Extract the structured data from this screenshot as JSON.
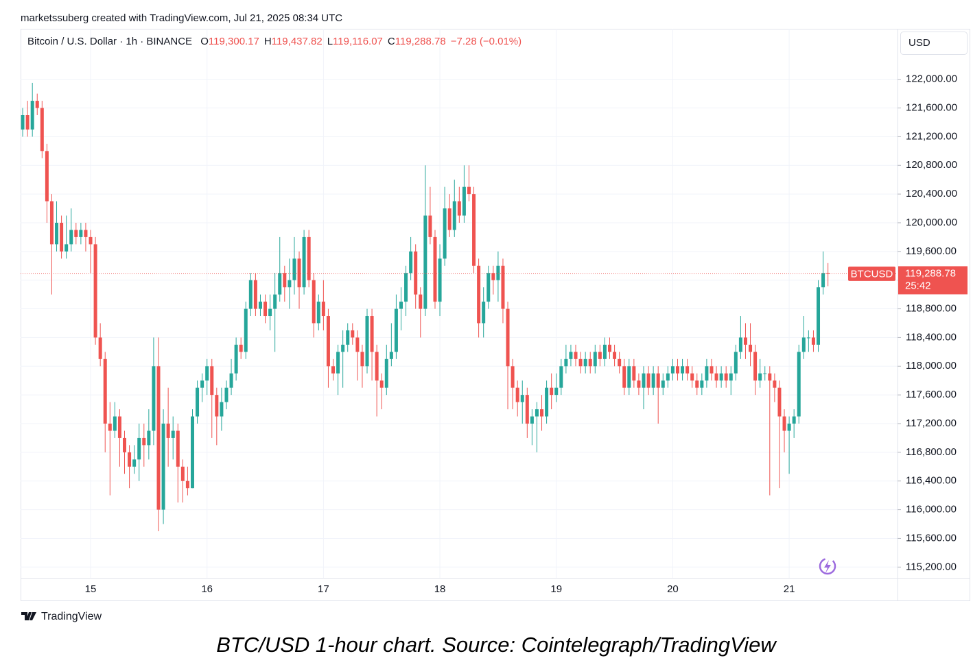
{
  "attribution": "marketssuberg created with TradingView.com, Jul 21, 2025 08:34 UTC",
  "caption": "BTC/USD 1-hour chart. Source: Cointelegraph/TradingView",
  "brand": "TradingView",
  "chart_data": {
    "type": "candlestick",
    "symbol": "Bitcoin / U.S. Dollar · 1h · BINANCE",
    "ohlc_legend": [
      {
        "key": "O",
        "text": "119,300.17"
      },
      {
        "key": "H",
        "text": "119,437.82"
      },
      {
        "key": "L",
        "text": "119,116.07"
      },
      {
        "key": "C",
        "text": "119,288.78"
      }
    ],
    "change": "−7.28 (−0.01%)",
    "currency": "USD",
    "price_tag": {
      "symbol": "BTCUSD",
      "price": "119,288.78",
      "countdown": "25:42"
    },
    "up_color": "#26a69a",
    "down_color": "#ef5350",
    "grid": true,
    "categories": [
      null,
      null,
      null,
      null,
      null,
      null,
      null,
      null,
      null,
      null,
      null,
      null,
      null,
      null,
      "15",
      null,
      null,
      null,
      null,
      null,
      null,
      null,
      null,
      null,
      null,
      null,
      null,
      null,
      null,
      null,
      null,
      null,
      null,
      null,
      null,
      null,
      null,
      null,
      "16",
      null,
      null,
      null,
      null,
      null,
      null,
      null,
      null,
      null,
      null,
      null,
      null,
      null,
      null,
      null,
      null,
      null,
      null,
      null,
      null,
      null,
      null,
      null,
      "17",
      null,
      null,
      null,
      null,
      null,
      null,
      null,
      null,
      null,
      null,
      null,
      null,
      null,
      null,
      null,
      null,
      null,
      null,
      null,
      null,
      null,
      null,
      null,
      "18",
      null,
      null,
      null,
      null,
      null,
      null,
      null,
      null,
      null,
      null,
      null,
      null,
      null,
      null,
      null,
      null,
      null,
      null,
      null,
      null,
      null,
      null,
      null,
      "19",
      null,
      null,
      null,
      null,
      null,
      null,
      null,
      null,
      null,
      null,
      null,
      null,
      null,
      null,
      null,
      null,
      null,
      null,
      null,
      null,
      null,
      null,
      null,
      "20",
      null,
      null,
      null,
      null,
      null,
      null,
      null,
      null,
      null,
      null,
      null,
      null,
      null,
      null,
      null,
      null,
      null,
      null,
      null,
      null,
      null,
      null,
      null,
      "21",
      null,
      null,
      null,
      null,
      null,
      null,
      null,
      null
    ],
    "open": [
      121300,
      121500,
      121300,
      121700,
      121600,
      121000,
      120300,
      119700,
      120000,
      119600,
      119700,
      119900,
      119800,
      119900,
      119800,
      119700,
      118400,
      118100,
      117200,
      117100,
      117300,
      117000,
      116800,
      116600,
      116700,
      117000,
      116900,
      117100,
      118000,
      116000,
      117200,
      117000,
      117100,
      116600,
      116400,
      116300,
      117300,
      117700,
      117800,
      118000,
      117600,
      117300,
      117500,
      117700,
      117900,
      118300,
      118200,
      118800,
      119200,
      118800,
      118900,
      118700,
      118800,
      119000,
      119300,
      119100,
      119200,
      119500,
      119100,
      119800,
      119200,
      118600,
      118900,
      118700,
      118000,
      117900,
      118200,
      118300,
      118500,
      118400,
      118200,
      118000,
      118700,
      118200,
      117800,
      117700,
      118100,
      118200,
      118800,
      118900,
      119300,
      119600,
      119000,
      118800,
      120100,
      119800,
      118900,
      119500,
      120200,
      119900,
      120300,
      120100,
      120500,
      120400,
      119400,
      118600,
      118900,
      119300,
      119200,
      119400,
      118800,
      118000,
      117700,
      117500,
      117600,
      117200,
      117300,
      117400,
      117300,
      117700,
      117600,
      117700,
      118000,
      118100,
      118200,
      118100,
      118000,
      118100,
      118000,
      118200,
      118100,
      118300,
      118200,
      118100,
      118000,
      117700,
      118000,
      117800,
      117700,
      117900,
      117700,
      117900,
      117700,
      117800,
      117900,
      118000,
      117900,
      118000,
      117900,
      117800,
      117700,
      117800,
      118000,
      117900,
      117800,
      117900,
      117800,
      117900,
      118200,
      118400,
      118300,
      118200,
      117800,
      117900,
      117900,
      117800,
      117700,
      117300,
      117100,
      117200,
      117300,
      118200,
      118400,
      118400,
      118300,
      119100,
      119300.17
    ],
    "high": [
      121600,
      121700,
      121950,
      121800,
      121700,
      121100,
      120400,
      120300,
      120100,
      120100,
      120200,
      120000,
      120000,
      120000,
      119900,
      119800,
      118600,
      118200,
      117500,
      117500,
      117400,
      117100,
      116900,
      116900,
      117200,
      117200,
      117400,
      118400,
      118400,
      117400,
      117700,
      117300,
      117200,
      116700,
      116600,
      117400,
      117800,
      117900,
      118100,
      118100,
      117700,
      117700,
      117800,
      118100,
      118400,
      118400,
      118900,
      119300,
      119300,
      119000,
      119000,
      119000,
      119300,
      119800,
      119400,
      119500,
      119800,
      119600,
      119900,
      119900,
      119300,
      119000,
      119200,
      118800,
      118100,
      118300,
      118500,
      118600,
      118600,
      118500,
      118300,
      118800,
      118800,
      118300,
      117900,
      118300,
      118600,
      119000,
      119100,
      119400,
      119800,
      119700,
      119100,
      120800,
      120500,
      119900,
      119700,
      120500,
      120400,
      120600,
      120500,
      120800,
      120800,
      120500,
      119500,
      119100,
      119400,
      119400,
      119600,
      119500,
      118900,
      118100,
      117800,
      117800,
      117700,
      117400,
      117500,
      117600,
      117800,
      117900,
      117900,
      118100,
      118300,
      118300,
      118300,
      118200,
      118200,
      118200,
      118300,
      118300,
      118400,
      118400,
      118300,
      118200,
      118100,
      118100,
      118100,
      117900,
      118000,
      118000,
      118000,
      118000,
      117900,
      118000,
      118100,
      118100,
      118100,
      118100,
      118000,
      117900,
      117900,
      118100,
      118100,
      118000,
      118000,
      118000,
      118000,
      118300,
      118700,
      118600,
      118600,
      118300,
      118100,
      118000,
      118000,
      117900,
      117800,
      117400,
      117300,
      117400,
      118300,
      118700,
      118500,
      118500,
      119200,
      119600,
      119437.82
    ],
    "low": [
      121200,
      121200,
      121200,
      121500,
      120900,
      120000,
      119000,
      119600,
      119500,
      119500,
      119600,
      119700,
      119700,
      119600,
      119300,
      118300,
      118000,
      116800,
      116200,
      117000,
      116600,
      116500,
      116300,
      116500,
      116400,
      116600,
      116700,
      116900,
      115700,
      115800,
      116600,
      116700,
      116100,
      116100,
      116200,
      116300,
      117200,
      117500,
      117600,
      117000,
      116900,
      117100,
      117400,
      117600,
      117800,
      118100,
      118100,
      118700,
      118700,
      118700,
      118600,
      118500,
      118200,
      118900,
      118900,
      118800,
      119000,
      118800,
      119000,
      119100,
      118400,
      118500,
      118500,
      117700,
      117800,
      117600,
      117700,
      118200,
      118300,
      117800,
      117700,
      117900,
      117800,
      117300,
      117400,
      117600,
      118000,
      118100,
      118500,
      118700,
      119200,
      118800,
      118400,
      118700,
      119700,
      118800,
      118700,
      119400,
      119800,
      119800,
      120000,
      120000,
      120300,
      119300,
      118400,
      118400,
      118800,
      119000,
      118900,
      118600,
      117400,
      117400,
      117300,
      117200,
      117000,
      116900,
      116800,
      117100,
      117200,
      117400,
      117500,
      117600,
      117900,
      118000,
      118000,
      117900,
      117900,
      117900,
      117900,
      118000,
      118000,
      118100,
      118000,
      117900,
      117600,
      117600,
      117700,
      117600,
      117400,
      117600,
      117600,
      117200,
      117600,
      117700,
      117800,
      117800,
      117800,
      117800,
      117700,
      117600,
      117600,
      117700,
      117800,
      117700,
      117700,
      117700,
      117600,
      117800,
      118100,
      118100,
      118000,
      117600,
      117700,
      117800,
      116200,
      117500,
      116300,
      116800,
      116500,
      117000,
      117200,
      118100,
      118200,
      118200,
      118200,
      119000,
      119116.07
    ],
    "close": [
      121500,
      121300,
      121700,
      121600,
      121000,
      120300,
      119700,
      120000,
      119600,
      119700,
      119900,
      119800,
      119900,
      119800,
      119700,
      118400,
      118100,
      117200,
      117100,
      117300,
      117000,
      116800,
      116600,
      116700,
      117000,
      116900,
      117100,
      118000,
      116000,
      117200,
      117000,
      117100,
      116600,
      116400,
      116300,
      117300,
      117700,
      117800,
      118000,
      117600,
      117300,
      117500,
      117700,
      117900,
      118300,
      118200,
      118800,
      119200,
      118800,
      118900,
      118700,
      118800,
      119000,
      119300,
      119100,
      119200,
      119500,
      119100,
      119800,
      119200,
      118600,
      118900,
      118700,
      118000,
      117900,
      118200,
      118300,
      118500,
      118400,
      118200,
      118000,
      118700,
      118200,
      117800,
      117700,
      118100,
      118200,
      118800,
      118900,
      119300,
      119600,
      119000,
      118800,
      120100,
      119800,
      118900,
      119500,
      120200,
      119900,
      120300,
      120100,
      120500,
      120400,
      119400,
      118600,
      118900,
      119300,
      119200,
      119400,
      118800,
      118000,
      117700,
      117500,
      117600,
      117200,
      117300,
      117400,
      117300,
      117700,
      117600,
      117700,
      118000,
      118100,
      118200,
      118100,
      118000,
      118100,
      118000,
      118200,
      118100,
      118300,
      118200,
      118100,
      118000,
      117700,
      118000,
      117800,
      117700,
      117900,
      117700,
      117900,
      117700,
      117800,
      117900,
      118000,
      117900,
      118000,
      117900,
      117800,
      117700,
      117800,
      118000,
      117900,
      117800,
      117900,
      117800,
      117900,
      118200,
      118400,
      118300,
      118200,
      117800,
      117900,
      117900,
      117800,
      117700,
      117300,
      117100,
      117200,
      117300,
      118200,
      118400,
      118400,
      118300,
      119100,
      119300,
      119288.78
    ],
    "ylim": [
      115050,
      122360
    ],
    "yticks": [
      {
        "value": 115200,
        "label": "115,200.00"
      },
      {
        "value": 115600,
        "label": "115,600.00"
      },
      {
        "value": 116000,
        "label": "116,000.00"
      },
      {
        "value": 116400,
        "label": "116,400.00"
      },
      {
        "value": 116800,
        "label": "116,800.00"
      },
      {
        "value": 117200,
        "label": "117,200.00"
      },
      {
        "value": 117600,
        "label": "117,600.00"
      },
      {
        "value": 118000,
        "label": "118,000.00"
      },
      {
        "value": 118400,
        "label": "118,400.00"
      },
      {
        "value": 118800,
        "label": "118,800.00"
      },
      {
        "value": 119200,
        "label": "119,200.00"
      },
      {
        "value": 119600,
        "label": "119,600.00"
      },
      {
        "value": 120000,
        "label": "120,000.00"
      },
      {
        "value": 120400,
        "label": "120,400.00"
      },
      {
        "value": 120800,
        "label": "120,800.00"
      },
      {
        "value": 121200,
        "label": "121,200.00"
      },
      {
        "value": 121600,
        "label": "121,600.00"
      },
      {
        "value": 122000,
        "label": "122,000.00"
      }
    ]
  }
}
